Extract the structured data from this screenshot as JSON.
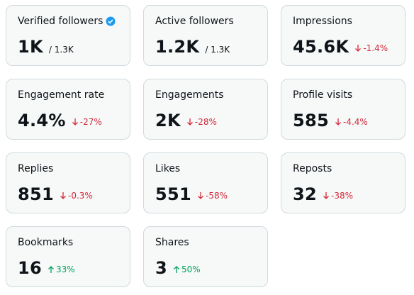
{
  "cards": [
    {
      "label": "Verified followers",
      "value": "1K",
      "total": "/ 1.3K",
      "verified": true
    },
    {
      "label": "Active followers",
      "value": "1.2K",
      "total": "/ 1.3K"
    },
    {
      "label": "Impressions",
      "value": "45.6K",
      "change": "-1.4%",
      "trend": "down"
    },
    {
      "label": "Engagement rate",
      "value": "4.4%",
      "change": "-27%",
      "trend": "down"
    },
    {
      "label": "Engagements",
      "value": "2K",
      "change": "-28%",
      "trend": "down"
    },
    {
      "label": "Profile visits",
      "value": "585",
      "change": "-4.4%",
      "trend": "down"
    },
    {
      "label": "Replies",
      "value": "851",
      "change": "-0.3%",
      "trend": "down"
    },
    {
      "label": "Likes",
      "value": "551",
      "change": "-58%",
      "trend": "down"
    },
    {
      "label": "Reposts",
      "value": "32",
      "change": "-38%",
      "trend": "down"
    },
    {
      "label": "Bookmarks",
      "value": "16",
      "change": "33%",
      "trend": "up"
    },
    {
      "label": "Shares",
      "value": "3",
      "change": "50%",
      "trend": "up"
    }
  ]
}
